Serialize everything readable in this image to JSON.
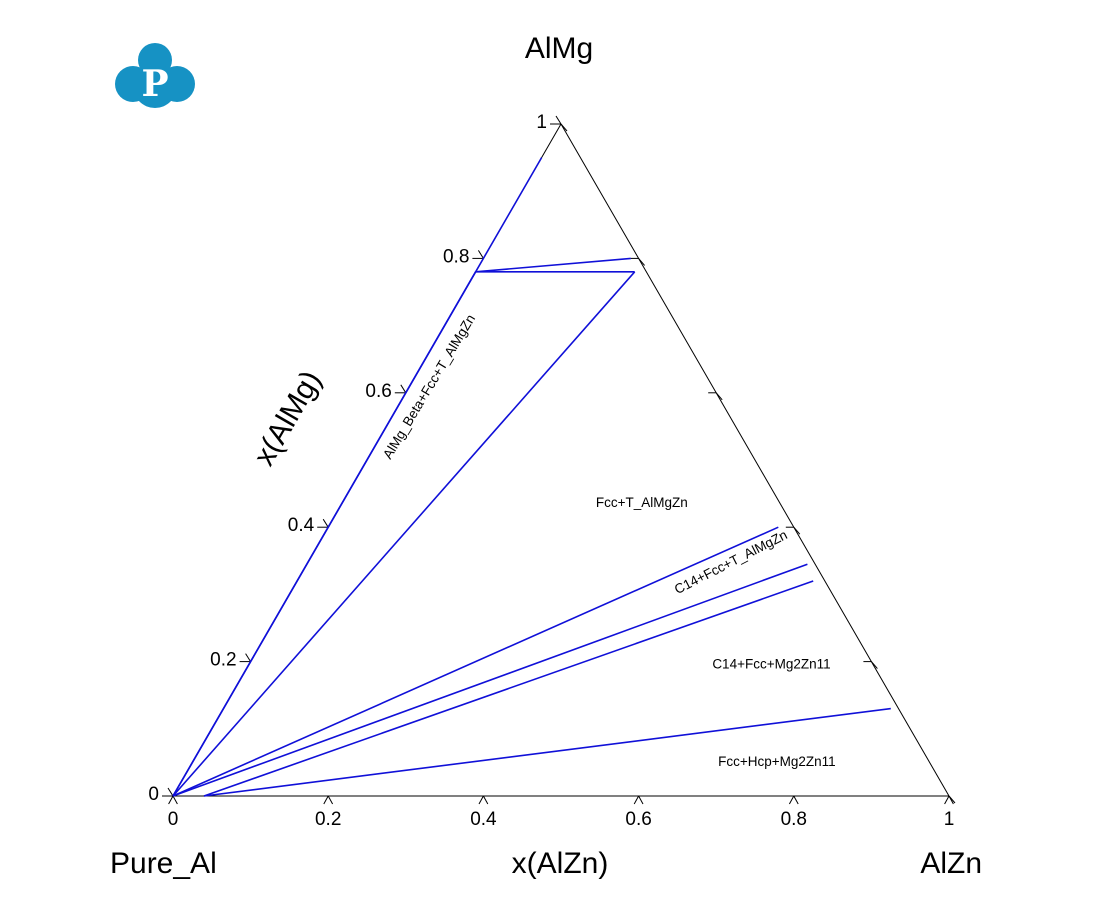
{
  "logo": {
    "letter": "P",
    "color": "#1692c4"
  },
  "chart_data": {
    "type": "ternary",
    "corners": {
      "left": "Pure_Al",
      "top": "AlMg",
      "right": "AlZn"
    },
    "xlabel": "x(AlZn)",
    "ylabel": "x(AlMg)",
    "xlim": [
      0,
      1
    ],
    "ylim": [
      0,
      1
    ],
    "x_ticks": [
      {
        "v": 0,
        "label": "0"
      },
      {
        "v": 0.2,
        "label": "0.2"
      },
      {
        "v": 0.4,
        "label": "0.4"
      },
      {
        "v": 0.6,
        "label": "0.6"
      },
      {
        "v": 0.8,
        "label": "0.8"
      },
      {
        "v": 1,
        "label": "1"
      }
    ],
    "y_ticks": [
      {
        "v": 0,
        "label": "0"
      },
      {
        "v": 0.2,
        "label": "0.2"
      },
      {
        "v": 0.4,
        "label": "0.4"
      },
      {
        "v": 0.6,
        "label": "0.6"
      },
      {
        "v": 0.8,
        "label": "0.8"
      },
      {
        "v": 1,
        "label": "1"
      }
    ],
    "line_color": "#1010d8",
    "frame_color": "#000000",
    "boundaries": [
      {
        "points": [
          [
            0,
            0
          ],
          [
            0.0,
            0.95
          ]
        ]
      },
      {
        "points": [
          [
            0,
            0
          ],
          [
            0.0,
            0.78
          ]
        ]
      },
      {
        "points": [
          [
            0.0,
            0.78
          ],
          [
            0.19,
            0.8
          ]
        ]
      },
      {
        "points": [
          [
            0.0,
            0.78
          ],
          [
            0.205,
            0.78
          ]
        ]
      },
      {
        "points": [
          [
            0,
            0
          ],
          [
            0.205,
            0.78
          ]
        ]
      },
      {
        "points": [
          [
            0,
            0
          ],
          [
            0.58,
            0.4
          ]
        ]
      },
      {
        "points": [
          [
            0,
            0
          ],
          [
            0.645,
            0.345
          ]
        ]
      },
      {
        "points": [
          [
            0.04,
            0.0
          ],
          [
            0.665,
            0.32
          ]
        ]
      },
      {
        "points": [
          [
            0.04,
            0.0
          ],
          [
            0.86,
            0.13
          ]
        ]
      }
    ],
    "regions": [
      {
        "label": "AlMg_Beta+Fcc+T_AlMgZn",
        "x": 0.03,
        "y": 0.5,
        "angle": -59
      },
      {
        "label": "Fcc+T_AlMgZn",
        "x": 0.33,
        "y": 0.43,
        "angle": 0
      },
      {
        "label": "C14+Fcc+T_AlMgZn",
        "x": 0.5,
        "y": 0.3,
        "angle": -27
      },
      {
        "label": "C14+Fcc+Mg2Zn11",
        "x": 0.6,
        "y": 0.19,
        "angle": 0
      },
      {
        "label": "Fcc+Hcp+Mg2Zn11",
        "x": 0.68,
        "y": 0.045,
        "angle": 0
      }
    ]
  }
}
